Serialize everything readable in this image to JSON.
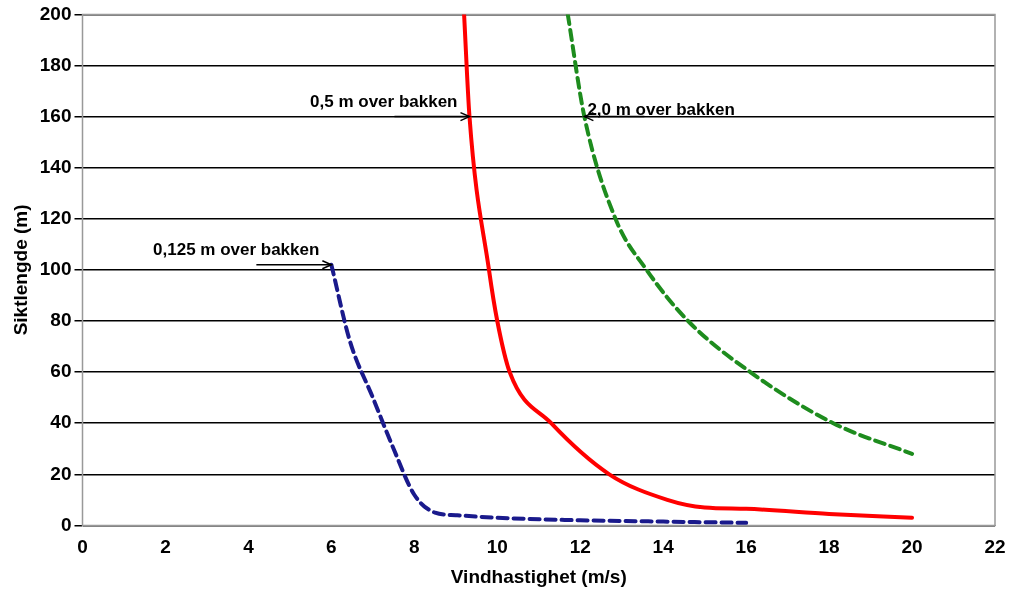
{
  "chart_data": {
    "type": "line",
    "xlabel": "Vindhastighet (m/s)",
    "ylabel": "Siktlengde (m)",
    "xlim": [
      0,
      22
    ],
    "xticks": [
      0,
      2,
      4,
      6,
      8,
      10,
      12,
      14,
      16,
      18,
      20,
      22
    ],
    "ylim": [
      0,
      200
    ],
    "yticks": [
      0,
      20,
      40,
      60,
      80,
      100,
      120,
      140,
      160,
      180,
      200
    ],
    "grid": "y",
    "legend": false,
    "marker": "none",
    "series": [
      {
        "color": "#1a1a8c",
        "line_style": "dashed",
        "x": [
          6,
          6.45,
          7,
          7.5,
          8,
          8.5,
          9,
          10,
          12,
          14,
          16
        ],
        "values": [
          102,
          72,
          50,
          30,
          12,
          5,
          4,
          3,
          2,
          1.5,
          1
        ]
      },
      {
        "color": "#ff0000",
        "line_style": "solid",
        "x": [
          9.2,
          9.33,
          9.8,
          10,
          10.3,
          11.3,
          12.7,
          14.1,
          15,
          16,
          18,
          20
        ],
        "values": [
          200,
          160,
          100,
          80,
          60,
          40,
          20,
          10,
          7,
          6.5,
          4.5,
          3
        ]
      },
      {
        "color": "#1e8c1e",
        "line_style": "dashed",
        "x": [
          11.7,
          12.1,
          12.85,
          13.6,
          14.6,
          16.1,
          18.1,
          20
        ],
        "values": [
          200,
          160,
          120,
          100,
          80,
          60,
          40,
          28
        ]
      }
    ],
    "annotations": [
      {
        "text": "0,5 m over bakken",
        "x": 9.33,
        "y": 160
      },
      {
        "text": "2,0 m over bakken",
        "x": 12.1,
        "y": 160
      },
      {
        "text": "0,125 m over bakken",
        "x": 6,
        "y": 102
      }
    ]
  }
}
